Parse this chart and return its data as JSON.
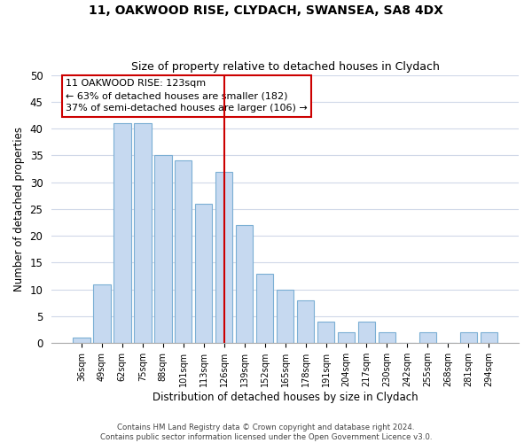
{
  "title": "11, OAKWOOD RISE, CLYDACH, SWANSEA, SA8 4DX",
  "subtitle": "Size of property relative to detached houses in Clydach",
  "xlabel": "Distribution of detached houses by size in Clydach",
  "ylabel": "Number of detached properties",
  "bar_labels": [
    "36sqm",
    "49sqm",
    "62sqm",
    "75sqm",
    "88sqm",
    "101sqm",
    "113sqm",
    "126sqm",
    "139sqm",
    "152sqm",
    "165sqm",
    "178sqm",
    "191sqm",
    "204sqm",
    "217sqm",
    "230sqm",
    "242sqm",
    "255sqm",
    "268sqm",
    "281sqm",
    "294sqm"
  ],
  "bar_values": [
    1,
    11,
    41,
    41,
    35,
    34,
    26,
    32,
    22,
    13,
    10,
    8,
    4,
    2,
    4,
    2,
    0,
    2,
    0,
    2,
    2
  ],
  "bar_color": "#c6d9f0",
  "bar_edge_color": "#7bafd4",
  "ylim": [
    0,
    50
  ],
  "yticks": [
    0,
    5,
    10,
    15,
    20,
    25,
    30,
    35,
    40,
    45,
    50
  ],
  "property_line_x_label": "126sqm",
  "property_line_color": "#cc0000",
  "annotation_title": "11 OAKWOOD RISE: 123sqm",
  "annotation_line1": "← 63% of detached houses are smaller (182)",
  "annotation_line2": "37% of semi-detached houses are larger (106) →",
  "annotation_box_color": "#ffffff",
  "annotation_box_edge": "#cc0000",
  "footer1": "Contains HM Land Registry data © Crown copyright and database right 2024.",
  "footer2": "Contains public sector information licensed under the Open Government Licence v3.0.",
  "background_color": "#ffffff",
  "grid_color": "#d0d8e8"
}
